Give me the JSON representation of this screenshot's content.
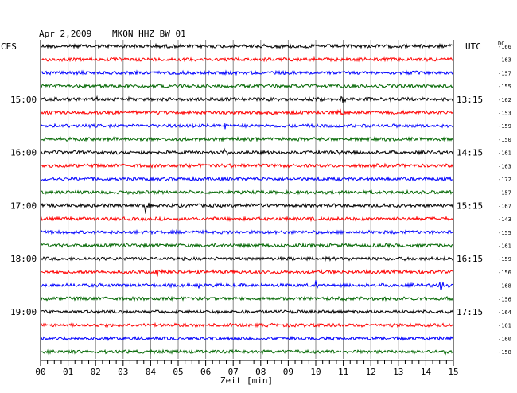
{
  "header": {
    "date": "Apr 2,2009",
    "station": "MKON HHZ BW 01",
    "left_tz": "CES",
    "right_tz": "UTC",
    "dc_label": "DC"
  },
  "chart_data": {
    "type": "line",
    "subtype": "helicorder",
    "xlabel": "Zeit [min]",
    "xlim": [
      0,
      15
    ],
    "x_ticks": [
      "00",
      "01",
      "02",
      "03",
      "04",
      "05",
      "06",
      "07",
      "08",
      "09",
      "10",
      "11",
      "12",
      "13",
      "14",
      "15"
    ],
    "grid": true,
    "trace_colors": [
      "#000000",
      "#ff0000",
      "#0000ff",
      "#006600"
    ],
    "left_hour_labels": [
      {
        "row": 4,
        "text": "15:00"
      },
      {
        "row": 8,
        "text": "16:00"
      },
      {
        "row": 12,
        "text": "17:00"
      },
      {
        "row": 16,
        "text": "18:00"
      },
      {
        "row": 20,
        "text": "19:00"
      }
    ],
    "right_hour_labels": [
      {
        "row": 4,
        "text": "13:15"
      },
      {
        "row": 8,
        "text": "14:15"
      },
      {
        "row": 12,
        "text": "15:15"
      },
      {
        "row": 16,
        "text": "16:15"
      },
      {
        "row": 20,
        "text": "17:15"
      }
    ],
    "dc_offsets": [
      "-166",
      "-163",
      "-157",
      "-155",
      "-162",
      "-153",
      "-159",
      "-150",
      "-161",
      "-163",
      "-172",
      "-157",
      "-167",
      "-143",
      "-155",
      "-161",
      "-159",
      "-156",
      "-168",
      "-156",
      "-164",
      "-161",
      "-160",
      "-158"
    ],
    "noise_level": [
      0.25,
      0.2,
      0.18,
      0.2,
      0.22,
      0.18,
      0.18,
      0.2,
      0.2,
      0.2,
      0.18,
      0.2,
      0.22,
      0.2,
      0.18,
      0.2,
      0.18,
      0.2,
      0.18,
      0.2,
      0.15,
      0.18,
      0.15,
      0.18
    ],
    "events": [
      {
        "row": 0,
        "minute": 8.1,
        "amp": 4
      },
      {
        "row": 4,
        "minute": 2.0,
        "amp": 3
      },
      {
        "row": 4,
        "minute": 10.9,
        "amp": 8
      },
      {
        "row": 5,
        "minute": 10.8,
        "amp": 5
      },
      {
        "row": 6,
        "minute": 6.6,
        "amp": 9
      },
      {
        "row": 8,
        "minute": 6.6,
        "amp": 8
      },
      {
        "row": 8,
        "minute": 10.8,
        "amp": 4
      },
      {
        "row": 9,
        "minute": 6.9,
        "amp": 6
      },
      {
        "row": 12,
        "minute": 3.8,
        "amp": 11
      },
      {
        "row": 17,
        "minute": 4.2,
        "amp": 11
      },
      {
        "row": 18,
        "minute": 5.7,
        "amp": 5
      },
      {
        "row": 18,
        "minute": 10.0,
        "amp": 5
      },
      {
        "row": 18,
        "minute": 14.5,
        "amp": 12
      },
      {
        "row": 23,
        "minute": 14.6,
        "amp": 5
      }
    ]
  }
}
